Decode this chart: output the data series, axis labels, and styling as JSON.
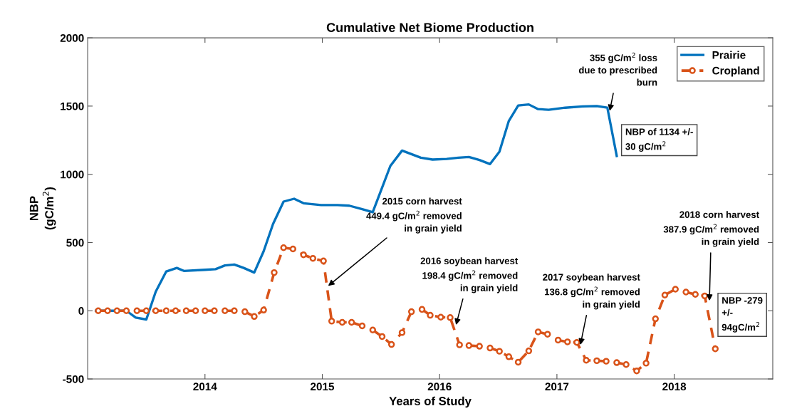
{
  "chart_data": {
    "type": "line",
    "title": "Cumulative Net Biome Production",
    "xlabel": "Years of Study",
    "ylabel": "NBP\n(gC/m$^{2}$)",
    "xlim": [
      2013.0,
      2018.84
    ],
    "xticks": [
      2014,
      2015,
      2016,
      2017,
      2018
    ],
    "ylim": [
      -500,
      2000
    ],
    "yticks": [
      -500,
      0,
      500,
      1000,
      1500,
      2000
    ],
    "grid": false,
    "legend": "top right",
    "series": [
      {
        "name": "Prairie",
        "color": "#0072bd",
        "marker": "none",
        "line_style": "solid",
        "x": [
          2013.07,
          2013.33,
          2013.41,
          2013.5,
          2013.58,
          2013.67,
          2013.76,
          2013.82,
          2014.0,
          2014.09,
          2014.17,
          2014.25,
          2014.33,
          2014.42,
          2014.5,
          2014.58,
          2014.67,
          2014.76,
          2014.84,
          2014.99,
          2015.13,
          2015.23,
          2015.34,
          2015.43,
          2015.58,
          2015.68,
          2015.76,
          2015.84,
          2015.94,
          2016.06,
          2016.16,
          2016.25,
          2016.34,
          2016.43,
          2016.51,
          2016.59,
          2016.67,
          2016.76,
          2016.84,
          2016.93,
          2017.07,
          2017.22,
          2017.34,
          2017.43,
          2017.51
        ],
        "values": [
          0,
          0,
          -50,
          -64,
          140,
          288,
          314,
          292,
          300,
          305,
          332,
          339,
          314,
          280,
          436,
          636,
          800,
          821,
          788,
          775,
          775,
          770,
          745,
          722,
          1061,
          1174,
          1148,
          1122,
          1108,
          1113,
          1122,
          1127,
          1105,
          1075,
          1165,
          1391,
          1504,
          1512,
          1478,
          1473,
          1488,
          1498,
          1500,
          1488,
          1134
        ]
      },
      {
        "name": "Cropland",
        "color": "#d95319",
        "marker": "circle",
        "line_style": "dashed",
        "x": [
          2013.09,
          2013.17,
          2013.25,
          2013.33,
          2013.42,
          2013.5,
          2013.58,
          2013.67,
          2013.75,
          2013.84,
          2013.92,
          2014.0,
          2014.08,
          2014.17,
          2014.25,
          2014.34,
          2014.42,
          2014.5,
          2014.59,
          2014.67,
          2014.75,
          2014.84,
          2014.92,
          2015.01,
          2015.08,
          2015.17,
          2015.25,
          2015.34,
          2015.43,
          2015.51,
          2015.59,
          2015.68,
          2015.76,
          2015.85,
          2015.92,
          2016.01,
          2016.09,
          2016.17,
          2016.25,
          2016.34,
          2016.43,
          2016.51,
          2016.59,
          2016.67,
          2016.76,
          2016.84,
          2016.92,
          2017.01,
          2017.09,
          2017.17,
          2017.25,
          2017.34,
          2017.42,
          2017.51,
          2017.59,
          2017.68,
          2017.76,
          2017.84,
          2017.92,
          2018.01,
          2018.1,
          2018.18,
          2018.26,
          2018.35
        ],
        "values": [
          0,
          0,
          0,
          0,
          0,
          0,
          0,
          0,
          0,
          0,
          0,
          0,
          0,
          0,
          0,
          -7,
          -42,
          5,
          280,
          462,
          453,
          410,
          384,
          365,
          -76,
          -85,
          -85,
          -111,
          -141,
          -189,
          -247,
          -160,
          -7,
          10,
          -33,
          -47,
          -50,
          -250,
          -255,
          -260,
          -273,
          -297,
          -337,
          -377,
          -294,
          -155,
          -172,
          -215,
          -228,
          -232,
          -363,
          -366,
          -370,
          -380,
          -394,
          -441,
          -384,
          -59,
          115,
          158,
          137,
          120,
          109,
          -279
        ]
      }
    ],
    "annotations": [
      {
        "text": "355 gC/m$^{2}$ loss\ndue to prescribed\nburn",
        "x": 2017.45,
        "y": 1464
      },
      {
        "text": "NBP of 1134 +/-\n30 gC/m$^{2}$",
        "x": 2017.51,
        "y": 1134
      },
      {
        "text": "2015 corn harvest\n449.4 gC/m$^{2}$ removed\nin grain yield",
        "x": 2015.05,
        "y": 182
      },
      {
        "text": "2016 soybean harvest\n198.4 gC/m$^{2}$ removed\nin grain yield",
        "x": 2016.14,
        "y": -104
      },
      {
        "text": "2017 soybean harvest\n136.8 gC/m$^{2}$ removed\nin grain yield",
        "x": 2017.2,
        "y": -250
      },
      {
        "text": "2018 corn harvest\n387.9 gC/m$^{2}$ removed\nin grain yield",
        "x": 2018.3,
        "y": 73
      },
      {
        "text": "NBP -279\n+/-\n94gC/m$^{2}$",
        "x": 2018.35,
        "y": -279
      }
    ]
  }
}
